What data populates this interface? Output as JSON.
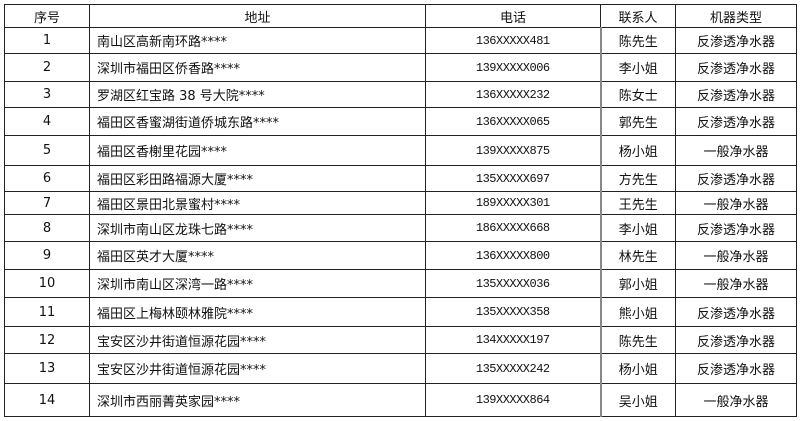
{
  "table": {
    "headers": [
      "序号",
      "地址",
      "电话",
      "联系人",
      "机器类型"
    ],
    "rows": [
      [
        "1",
        "南山区高新南环路****",
        "136XXXXX481",
        "陈先生",
        "反渗透净水器"
      ],
      [
        "2",
        "深圳市福田区侨香路****",
        "139XXXXX006",
        "李小姐",
        "反渗透净水器"
      ],
      [
        "3",
        "罗湖区红宝路 38 号大院****",
        "136XXXXX232",
        "陈女士",
        "反渗透净水器"
      ],
      [
        "4",
        "福田区香蜜湖街道侨城东路****",
        "136XXXXX065",
        "郭先生",
        "反渗透净水器"
      ],
      [
        "5",
        "福田区香榭里花园****",
        "139XXXXX875",
        "杨小姐",
        "一般净水器"
      ],
      [
        "6",
        "福田区彩田路福源大厦****",
        "135XXXXX697",
        "方先生",
        "反渗透净水器"
      ],
      [
        "7",
        "福田区景田北景蜜村****",
        "189XXXXX301",
        "王先生",
        "一般净水器"
      ],
      [
        "8",
        "深圳市南山区龙珠七路****",
        "186XXXXX668",
        "李小姐",
        "反渗透净水器"
      ],
      [
        "9",
        "福田区英才大厦****",
        "136XXXXX800",
        "林先生",
        "一般净水器"
      ],
      [
        "10",
        "深圳市南山区深湾一路****",
        "135XXXXX036",
        "郭小姐",
        "一般净水器"
      ],
      [
        "11",
        "福田区上梅林颐林雅院****",
        "135XXXXX358",
        "熊小姐",
        "反渗透净水器"
      ],
      [
        "12",
        "宝安区沙井街道恒源花园****",
        "134XXXXX197",
        "陈先生",
        "反渗透净水器"
      ],
      [
        "13",
        "宝安区沙井街道恒源花园****",
        "135XXXXX242",
        "杨小姐",
        "反渗透净水器"
      ],
      [
        "14",
        "深圳市西丽菁英家园****",
        "139XXXXX864",
        "吴小姐",
        "一般净水器"
      ]
    ]
  }
}
